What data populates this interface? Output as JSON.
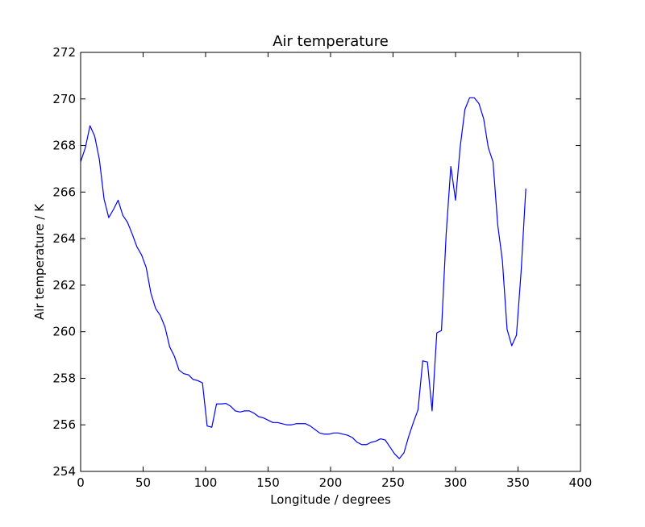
{
  "chart_data": {
    "type": "line",
    "title": "Air temperature",
    "xlabel": "Longitude / degrees",
    "ylabel": "Air temperature / K",
    "xlim": [
      0,
      400
    ],
    "ylim": [
      254,
      272
    ],
    "xticks": [
      "0",
      "50",
      "100",
      "150",
      "200",
      "250",
      "300",
      "350",
      "400"
    ],
    "yticks": [
      "254",
      "256",
      "258",
      "260",
      "262",
      "264",
      "266",
      "268",
      "270",
      "272"
    ],
    "grid": false,
    "line_color": "#0000ff",
    "series": [
      {
        "x": [
          0,
          3.75,
          7.5,
          11.25,
          15,
          18.75,
          22.5,
          26.25,
          30,
          33.75,
          37.5,
          41.25,
          45,
          48.75,
          52.5,
          56.25,
          60,
          63.75,
          67.5,
          71.25,
          75,
          78.75,
          82.5,
          86.25,
          90,
          93.75,
          97.5,
          101.25,
          105,
          108.75,
          112.5,
          116.25,
          120,
          123.75,
          127.5,
          131.25,
          135,
          138.75,
          142.5,
          146.25,
          150,
          153.75,
          157.5,
          161.25,
          165,
          168.75,
          172.5,
          176.25,
          180,
          183.75,
          187.5,
          191.25,
          195,
          198.75,
          202.5,
          206.25,
          210,
          213.75,
          217.5,
          221.25,
          225,
          228.75,
          232.5,
          236.25,
          240,
          243.75,
          247.5,
          251.25,
          255,
          258.75,
          262.5,
          266.25,
          270,
          273.75,
          277.5,
          281.25,
          285,
          288.75,
          292.5,
          296.25,
          300,
          303.75,
          307.5,
          311.25,
          315,
          318.75,
          322.5,
          326.25,
          330,
          333.75,
          337.5,
          341.25,
          345,
          348.75,
          352.5,
          356.25
        ],
        "y": [
          267.3,
          267.9,
          268.85,
          268.4,
          267.4,
          265.7,
          264.9,
          265.25,
          265.65,
          265.0,
          264.7,
          264.2,
          263.65,
          263.3,
          262.75,
          261.65,
          261.0,
          260.7,
          260.2,
          259.35,
          258.95,
          258.35,
          258.2,
          258.15,
          257.95,
          257.9,
          257.8,
          255.95,
          255.9,
          256.9,
          256.9,
          256.92,
          256.8,
          256.6,
          256.55,
          256.6,
          256.6,
          256.5,
          256.35,
          256.3,
          256.2,
          256.1,
          256.1,
          256.05,
          256.0,
          256.0,
          256.05,
          256.05,
          256.05,
          255.95,
          255.8,
          255.65,
          255.6,
          255.6,
          255.65,
          255.65,
          255.6,
          255.55,
          255.45,
          255.25,
          255.15,
          255.15,
          255.25,
          255.3,
          255.4,
          255.35,
          255.05,
          254.75,
          254.55,
          254.8,
          255.5,
          256.1,
          256.65,
          258.75,
          258.7,
          256.6,
          259.95,
          260.05,
          264.2,
          267.1,
          265.65,
          267.95,
          269.55,
          270.05,
          270.05,
          269.8,
          269.15,
          267.9,
          267.3,
          264.6,
          263.05,
          260.1,
          259.4,
          259.85,
          262.6,
          266.15
        ]
      }
    ]
  }
}
